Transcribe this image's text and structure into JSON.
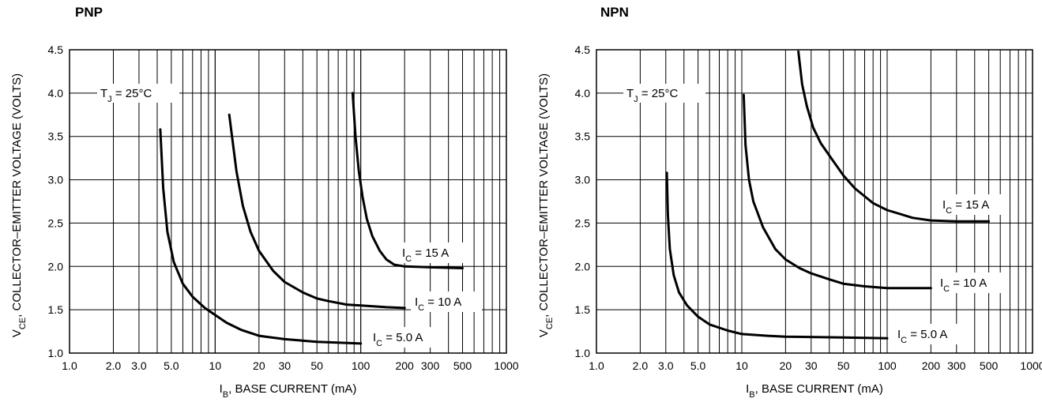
{
  "chart_data": [
    {
      "type": "line",
      "title": "PNP",
      "xlabel": {
        "main": "I",
        "sub": "B",
        "rest": ", BASE CURRENT (mA)"
      },
      "ylabel": {
        "main": "V",
        "sub": "CE",
        "rest": ", COLLECTOR–EMITTER VOLTAGE (VOLTS)"
      },
      "x_scale": "log",
      "xlim": [
        1.0,
        1000
      ],
      "ylim": [
        1.0,
        4.5
      ],
      "grid": true,
      "xticks": [
        {
          "v": 1,
          "label": "1.0"
        },
        {
          "v": 2,
          "label": "2.0"
        },
        {
          "v": 3,
          "label": "3.0"
        },
        {
          "v": 5,
          "label": "5.0"
        },
        {
          "v": 10,
          "label": "10"
        },
        {
          "v": 20,
          "label": "20"
        },
        {
          "v": 30,
          "label": "30"
        },
        {
          "v": 50,
          "label": "50"
        },
        {
          "v": 100,
          "label": "100"
        },
        {
          "v": 200,
          "label": "200"
        },
        {
          "v": 300,
          "label": "300"
        },
        {
          "v": 500,
          "label": "500"
        },
        {
          "v": 1000,
          "label": "1000"
        }
      ],
      "yticks": [
        {
          "v": 1.0,
          "label": "1.0"
        },
        {
          "v": 1.5,
          "label": "1.5"
        },
        {
          "v": 2.0,
          "label": "2.0"
        },
        {
          "v": 2.5,
          "label": "2.5"
        },
        {
          "v": 3.0,
          "label": "3.0"
        },
        {
          "v": 3.5,
          "label": "3.5"
        },
        {
          "v": 4.0,
          "label": "4.0"
        },
        {
          "v": 4.5,
          "label": "4.5"
        }
      ],
      "annotation": {
        "main": "T",
        "sub": "J",
        "rest": " = 25°C"
      },
      "series": [
        {
          "name": "I_C = 5.0 A",
          "label": {
            "main": "I",
            "sub": "C",
            "rest": " = 5.0 A"
          },
          "x": [
            4.2,
            4.4,
            4.7,
            5.2,
            6,
            7,
            8.5,
            10,
            12,
            15,
            20,
            30,
            50,
            100
          ],
          "y": [
            3.58,
            2.9,
            2.4,
            2.05,
            1.8,
            1.65,
            1.52,
            1.44,
            1.35,
            1.27,
            1.2,
            1.16,
            1.13,
            1.11
          ]
        },
        {
          "name": "I_C = 10 A",
          "label": {
            "main": "I",
            "sub": "C",
            "rest": " = 10 A"
          },
          "x": [
            12.5,
            14,
            15.5,
            17.5,
            20,
            25,
            30,
            40,
            50,
            60,
            80,
            100,
            150,
            200
          ],
          "y": [
            3.75,
            3.1,
            2.7,
            2.4,
            2.18,
            1.95,
            1.82,
            1.7,
            1.63,
            1.6,
            1.56,
            1.55,
            1.53,
            1.52
          ]
        },
        {
          "name": "I_C = 15 A",
          "label": {
            "main": "I",
            "sub": "C",
            "rest": " = 15 A"
          },
          "x": [
            88,
            92,
            97,
            103,
            110,
            120,
            135,
            150,
            170,
            200,
            300,
            500
          ],
          "y": [
            4.0,
            3.5,
            3.1,
            2.8,
            2.55,
            2.35,
            2.18,
            2.08,
            2.02,
            2.0,
            1.99,
            1.98
          ]
        }
      ]
    },
    {
      "type": "line",
      "title": "NPN",
      "xlabel": {
        "main": "I",
        "sub": "B",
        "rest": ", BASE CURRENT (mA)"
      },
      "ylabel": {
        "main": "V",
        "sub": "CE",
        "rest": ", COLLECTOR–EMITTER VOLTAGE (VOLTS)"
      },
      "x_scale": "log",
      "xlim": [
        1.0,
        1000
      ],
      "ylim": [
        1.0,
        4.5
      ],
      "grid": true,
      "xticks": [
        {
          "v": 1,
          "label": "1.0"
        },
        {
          "v": 2,
          "label": "2.0"
        },
        {
          "v": 3,
          "label": "3.0"
        },
        {
          "v": 5,
          "label": "5.0"
        },
        {
          "v": 10,
          "label": "10"
        },
        {
          "v": 20,
          "label": "20"
        },
        {
          "v": 30,
          "label": "30"
        },
        {
          "v": 50,
          "label": "50"
        },
        {
          "v": 100,
          "label": "100"
        },
        {
          "v": 200,
          "label": "200"
        },
        {
          "v": 300,
          "label": "300"
        },
        {
          "v": 500,
          "label": "500"
        },
        {
          "v": 1000,
          "label": "1000"
        }
      ],
      "yticks": [
        {
          "v": 1.0,
          "label": "1.0"
        },
        {
          "v": 1.5,
          "label": "1.5"
        },
        {
          "v": 2.0,
          "label": "2.0"
        },
        {
          "v": 2.5,
          "label": "2.5"
        },
        {
          "v": 3.0,
          "label": "3.0"
        },
        {
          "v": 3.5,
          "label": "3.5"
        },
        {
          "v": 4.0,
          "label": "4.0"
        },
        {
          "v": 4.5,
          "label": "4.5"
        }
      ],
      "annotation": {
        "main": "T",
        "sub": "J",
        "rest": " = 25°C"
      },
      "series": [
        {
          "name": "I_C = 5.0 A",
          "label": {
            "main": "I",
            "sub": "C",
            "rest": " = 5.0 A"
          },
          "x": [
            3.05,
            3.1,
            3.2,
            3.4,
            3.7,
            4.2,
            5,
            6,
            8,
            10,
            15,
            20,
            50,
            100
          ],
          "y": [
            3.08,
            2.6,
            2.2,
            1.9,
            1.7,
            1.55,
            1.42,
            1.33,
            1.26,
            1.22,
            1.2,
            1.19,
            1.18,
            1.17
          ]
        },
        {
          "name": "I_C = 10 A",
          "label": {
            "main": "I",
            "sub": "C",
            "rest": " = 10 A"
          },
          "x": [
            10.3,
            10.6,
            11.2,
            12,
            14,
            17,
            20,
            25,
            30,
            40,
            50,
            70,
            100,
            150,
            200
          ],
          "y": [
            3.98,
            3.4,
            3.0,
            2.75,
            2.45,
            2.2,
            2.08,
            1.98,
            1.92,
            1.85,
            1.8,
            1.77,
            1.75,
            1.75,
            1.75
          ]
        },
        {
          "name": "I_C = 15 A",
          "label": {
            "main": "I",
            "sub": "C",
            "rest": " = 15 A"
          },
          "x": [
            24.5,
            26,
            28,
            31,
            35,
            40,
            50,
            60,
            80,
            100,
            150,
            200,
            300,
            500
          ],
          "y": [
            4.48,
            4.1,
            3.85,
            3.6,
            3.42,
            3.28,
            3.05,
            2.9,
            2.73,
            2.65,
            2.56,
            2.53,
            2.52,
            2.52
          ]
        }
      ]
    }
  ]
}
